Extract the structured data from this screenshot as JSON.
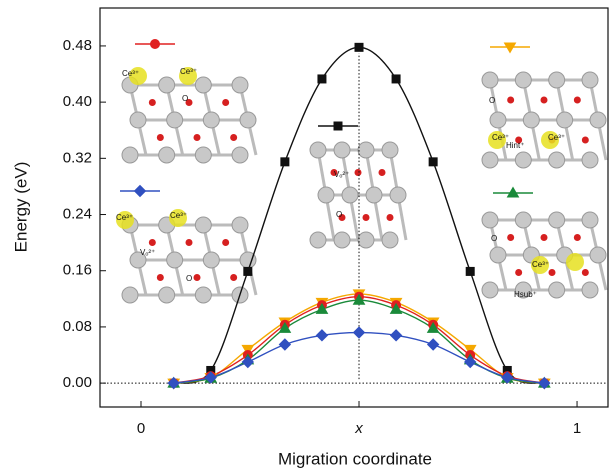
{
  "chart_data": {
    "type": "line",
    "x_label": "Migration coordinate",
    "y_label": "Energy (eV)",
    "x": [
      0.075,
      0.16,
      0.245,
      0.33,
      0.415,
      0.5,
      0.585,
      0.67,
      0.755,
      0.84,
      0.925
    ],
    "series": [
      {
        "color": "#111111",
        "marker": "square",
        "values": [
          0,
          0.018,
          0.159,
          0.315,
          0.433,
          0.478,
          0.433,
          0.315,
          0.159,
          0.018,
          0
        ]
      },
      {
        "color": "#f5a800",
        "marker": "triangle-down",
        "values": [
          0,
          0.008,
          0.048,
          0.087,
          0.115,
          0.127,
          0.115,
          0.087,
          0.048,
          0.008,
          0
        ]
      },
      {
        "color": "#e02020",
        "marker": "circle",
        "values": [
          0,
          0.01,
          0.04,
          0.083,
          0.111,
          0.123,
          0.111,
          0.083,
          0.04,
          0.01,
          0
        ]
      },
      {
        "color": "#1a8a3a",
        "marker": "triangle-up",
        "values": [
          0,
          0.007,
          0.033,
          0.078,
          0.105,
          0.118,
          0.105,
          0.078,
          0.033,
          0.007,
          0
        ]
      },
      {
        "color": "#3050c0",
        "marker": "diamond",
        "values": [
          0,
          0.008,
          0.03,
          0.055,
          0.068,
          0.072,
          0.068,
          0.055,
          0.03,
          0.008,
          0
        ]
      }
    ],
    "xlim": [
      -0.094,
      1.071
    ],
    "ylim": [
      -0.034,
      0.534
    ],
    "xticks": [
      0,
      {
        "value": 0.5,
        "label": "x"
      },
      1
    ],
    "yticks": [
      {
        "value": 0,
        "label": "0.00"
      },
      0.08,
      0.16,
      0.24,
      0.32,
      {
        "value": 0.4,
        "label": "0.40"
      },
      0.48
    ],
    "annotations": [
      "Ce³⁺",
      "Ce³⁺",
      "O",
      "Ce³⁺",
      "Ce³⁺",
      "Vₒ²⁺",
      "O",
      "Vₒ²⁺",
      "O",
      "O",
      "Hint⁺",
      "Ce³⁺",
      "Ce³⁺",
      "O",
      "Ce³⁺",
      "Hsub⁺"
    ]
  }
}
